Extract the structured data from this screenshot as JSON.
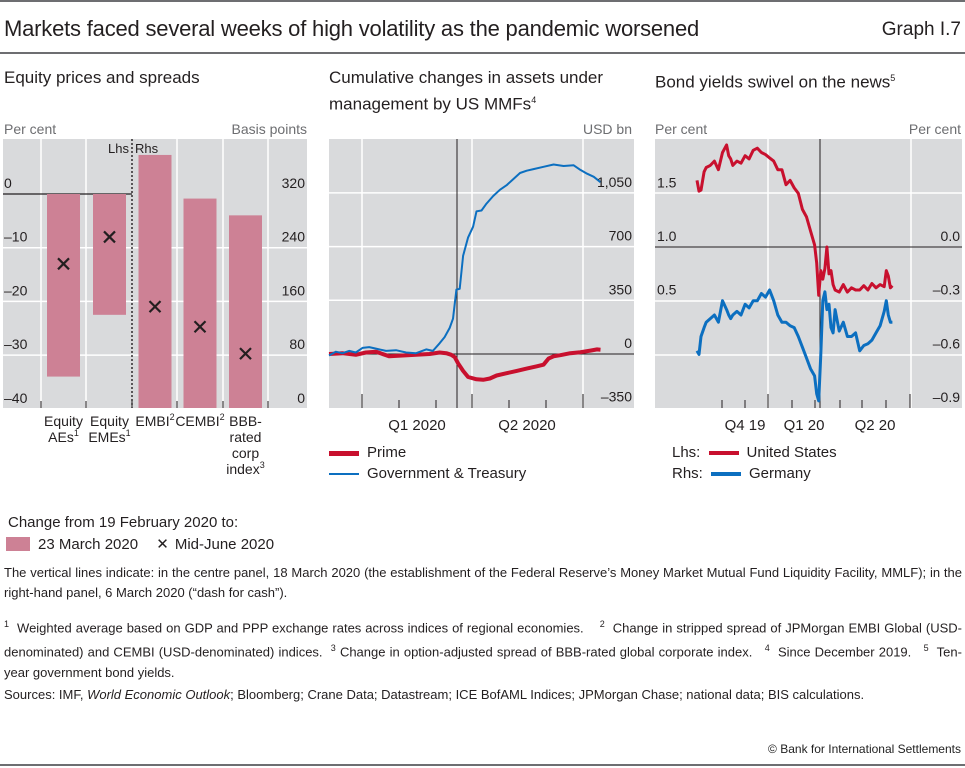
{
  "header": {
    "title": "Markets faced several weeks of high volatility as the pandemic worsened",
    "graph_number": "Graph I.7"
  },
  "colors": {
    "panel_bg": "#d9dadc",
    "bar_pink": "#cd8195",
    "red_series": "#c8102e",
    "blue_series": "#0c6fc0",
    "axis_black": "#231f20",
    "grid_white": "#ffffff"
  },
  "chart_data": [
    {
      "type": "bar",
      "title": "Equity prices and spreads",
      "ylabel_left": "Per cent",
      "ylabel_right": "Basis points",
      "lhs_rhs_marker": "Lhs",
      "rhs_marker": "Rhs",
      "ylim_left": [
        -40,
        0
      ],
      "ylim_right": [
        0,
        400
      ],
      "yticks_left": [
        "0",
        "–10",
        "–20",
        "–30",
        "–40"
      ],
      "yticks_right": [
        "320",
        "240",
        "160",
        "80",
        "0"
      ],
      "categories": [
        {
          "label": "Equity AEs",
          "sup": "1",
          "axis": "left"
        },
        {
          "label": "Equity EMEs",
          "sup": "1",
          "axis": "left"
        },
        {
          "label": "EMBI",
          "sup": "2",
          "axis": "right"
        },
        {
          "label": "CEMBI",
          "sup": "2",
          "axis": "right"
        },
        {
          "label": "BBB-rated corp index",
          "sup": "3",
          "axis": "right"
        }
      ],
      "category_lines": [
        [
          "Equity",
          "AEs"
        ],
        [
          "Equity",
          "EMEs"
        ],
        [
          "EMBI"
        ],
        [
          "CEMBI"
        ],
        [
          "BBB-",
          "rated",
          "corp",
          "index"
        ]
      ],
      "series": [
        {
          "name": "23 March 2020",
          "marker": "bar",
          "values": [
            -34,
            -22.5,
            377,
            312,
            287
          ]
        },
        {
          "name": "Mid-June 2020",
          "marker": "x",
          "values": [
            -13,
            -8,
            151,
            121,
            81
          ]
        }
      ],
      "legend_heading": "Change from 19 February 2020 to:",
      "grid": true
    },
    {
      "type": "line",
      "title_lines": [
        "Cumulative changes in assets under",
        "management by US MMFs"
      ],
      "title_sup": "4",
      "ylabel_right": "USD bn",
      "ylim": [
        -350,
        1400
      ],
      "yticks": [
        "1,050",
        "700",
        "350",
        "0",
        "–350"
      ],
      "ytick_values": [
        1050,
        700,
        350,
        0,
        -350
      ],
      "xlabels": [
        "Q1 2020",
        "Q2 2020"
      ],
      "x_range_days": [
        0,
        182
      ],
      "vertical_line_day": 77,
      "series": [
        {
          "name": "Prime",
          "color": "red",
          "x": [
            0,
            8,
            16,
            22,
            28,
            36,
            44,
            52,
            60,
            66,
            70,
            73,
            75,
            77,
            80,
            83,
            88,
            92,
            96,
            100,
            106,
            112,
            118,
            124,
            128,
            131,
            134,
            138,
            144,
            150,
            156,
            160,
            162
          ],
          "y": [
            0,
            5,
            -5,
            10,
            15,
            -15,
            -10,
            -5,
            0,
            10,
            5,
            -5,
            -20,
            -60,
            -110,
            -150,
            -165,
            -168,
            -160,
            -140,
            -125,
            -110,
            -95,
            -80,
            -70,
            -30,
            -15,
            -8,
            5,
            12,
            22,
            30,
            28
          ]
        },
        {
          "name": "Government & Treasury",
          "color": "blue",
          "x": [
            0,
            4,
            8,
            12,
            16,
            20,
            24,
            28,
            34,
            40,
            46,
            52,
            58,
            62,
            66,
            69,
            72,
            74,
            76,
            78,
            80,
            83,
            86,
            88,
            91,
            94,
            98,
            102,
            106,
            110,
            114,
            118,
            122,
            128,
            134,
            140,
            146,
            150,
            154,
            158,
            162
          ],
          "y": [
            -10,
            15,
            5,
            20,
            10,
            40,
            45,
            35,
            20,
            25,
            10,
            5,
            30,
            20,
            70,
            110,
            170,
            230,
            420,
            425,
            640,
            760,
            830,
            930,
            935,
            980,
            1030,
            1070,
            1100,
            1140,
            1180,
            1195,
            1205,
            1220,
            1235,
            1225,
            1230,
            1200,
            1175,
            1155,
            1120
          ]
        }
      ],
      "grid": true
    },
    {
      "type": "line",
      "title": "Bond yields swivel on the news",
      "title_sup": "5",
      "ylabel_left": "Per cent",
      "ylabel_right": "Per cent",
      "ylim_left": [
        0.0,
        2.0
      ],
      "ylim_right": [
        -0.9,
        0.3
      ],
      "yticks_left": [
        "1.5",
        "1.0",
        "0.5"
      ],
      "yticks_left_values": [
        1.5,
        1.0,
        0.5
      ],
      "yticks_right": [
        "0.0",
        "–0.3",
        "–0.6",
        "–0.9"
      ],
      "yticks_right_values": [
        0.0,
        -0.3,
        -0.6,
        -0.9
      ],
      "xlabels": [
        "Q4 19",
        "Q1 20",
        "Q2 20"
      ],
      "x_range_days": [
        0,
        300
      ],
      "vertical_line_day": 161,
      "series": [
        {
          "name": "United States",
          "axis": "Lhs",
          "color": "red",
          "x": [
            41,
            43,
            45,
            48,
            50,
            54,
            58,
            62,
            66,
            70,
            72,
            74,
            76,
            80,
            84,
            88,
            92,
            96,
            100,
            104,
            108,
            112,
            116,
            120,
            124,
            128,
            132,
            136,
            140,
            144,
            148,
            152,
            156,
            158,
            160,
            162,
            164,
            166,
            168,
            170,
            172,
            174,
            176,
            180,
            184,
            188,
            192,
            196,
            200,
            204,
            208,
            212,
            216,
            220,
            224,
            226,
            228,
            230,
            232
          ],
          "y": [
            1.62,
            1.52,
            1.53,
            1.7,
            1.74,
            1.76,
            1.8,
            1.72,
            1.88,
            1.95,
            1.85,
            1.82,
            1.76,
            1.8,
            1.78,
            1.85,
            1.82,
            1.9,
            1.92,
            1.88,
            1.86,
            1.83,
            1.8,
            1.72,
            1.72,
            1.58,
            1.62,
            1.55,
            1.5,
            1.35,
            1.28,
            1.15,
            1.02,
            0.85,
            0.55,
            0.78,
            0.7,
            0.8,
            1.0,
            0.75,
            0.78,
            0.65,
            0.6,
            0.58,
            0.65,
            0.58,
            0.62,
            0.6,
            0.6,
            0.64,
            0.6,
            0.66,
            0.62,
            0.65,
            0.63,
            0.78,
            0.73,
            0.62,
            0.64
          ]
        },
        {
          "name": "Germany",
          "axis": "Rhs",
          "color": "blue",
          "x": [
            41,
            43,
            45,
            48,
            50,
            54,
            58,
            62,
            66,
            70,
            72,
            74,
            76,
            80,
            84,
            88,
            92,
            96,
            100,
            104,
            108,
            112,
            116,
            120,
            124,
            128,
            132,
            136,
            140,
            144,
            148,
            152,
            156,
            158,
            160,
            162,
            164,
            166,
            168,
            170,
            172,
            174,
            176,
            180,
            184,
            188,
            192,
            196,
            200,
            204,
            208,
            212,
            216,
            220,
            224,
            226,
            228,
            230,
            232
          ],
          "y": [
            -0.58,
            -0.6,
            -0.5,
            -0.45,
            -0.42,
            -0.4,
            -0.38,
            -0.42,
            -0.3,
            -0.35,
            -0.38,
            -0.4,
            -0.38,
            -0.36,
            -0.38,
            -0.32,
            -0.34,
            -0.3,
            -0.3,
            -0.26,
            -0.28,
            -0.24,
            -0.3,
            -0.38,
            -0.42,
            -0.42,
            -0.44,
            -0.45,
            -0.5,
            -0.56,
            -0.62,
            -0.68,
            -0.72,
            -0.82,
            -0.86,
            -0.6,
            -0.3,
            -0.25,
            -0.35,
            -0.32,
            -0.45,
            -0.48,
            -0.35,
            -0.47,
            -0.42,
            -0.5,
            -0.5,
            -0.48,
            -0.58,
            -0.55,
            -0.54,
            -0.52,
            -0.48,
            -0.44,
            -0.36,
            -0.3,
            -0.38,
            -0.42,
            -0.42
          ]
        }
      ],
      "legend_prefixes": [
        "Lhs:",
        "Rhs:"
      ],
      "grid": true
    }
  ],
  "legend_bottom": {
    "heading": "Change from 19 February 2020 to:",
    "items": [
      {
        "label": "23 March 2020",
        "marker": "pink-square"
      },
      {
        "label": "Mid-June 2020",
        "marker": "x-mark"
      }
    ],
    "x_glyph": "✕"
  },
  "notes": {
    "vertical_lines": "The vertical lines indicate: in the centre panel, 18 March 2020 (the establishment of the Federal Reserve’s Money Market Mutual Fund Liquidity Facility, MMLF); in the right-hand panel, 6 March 2020 (“dash for cash”).",
    "footnotes": [
      {
        "num": "1",
        "text": "Weighted average based on GDP and PPP exchange rates across indices of regional economies."
      },
      {
        "num": "2",
        "text": "Change in stripped spread of JPMorgan EMBI Global (USD-denominated) and CEMBI (USD-denominated) indices."
      },
      {
        "num": "3",
        "text": "Change in option-adjusted spread of BBB-rated global corporate index."
      },
      {
        "num": "4",
        "text": "Since December 2019."
      },
      {
        "num": "5",
        "text": "Ten-year government bond yields."
      }
    ],
    "sources_prefix": "Sources: IMF, ",
    "sources_italic": "World Economic Outlook",
    "sources_rest": "; Bloomberg; Crane Data; Datastream; ICE BofAML Indices; JPMorgan Chase; national data; BIS calculations.",
    "copyright": "© Bank for International Settlements"
  }
}
